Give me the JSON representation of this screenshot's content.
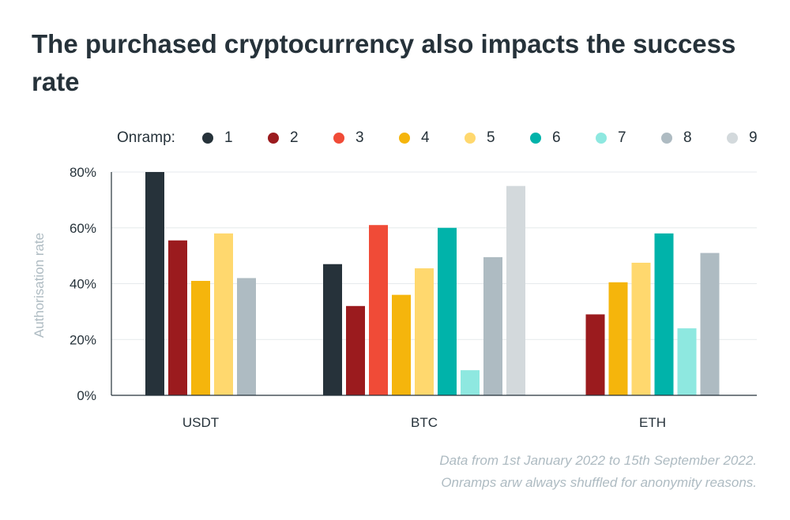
{
  "title": "The purchased cryptocurrency also impacts the success rate",
  "legend": {
    "label": "Onramp:",
    "items": [
      {
        "label": "1",
        "color": "#26323a"
      },
      {
        "label": "2",
        "color": "#9b1b1e"
      },
      {
        "label": "3",
        "color": "#f04b37"
      },
      {
        "label": "4",
        "color": "#f5b50c"
      },
      {
        "label": "5",
        "color": "#ffd86e"
      },
      {
        "label": "6",
        "color": "#00b3aa"
      },
      {
        "label": "7",
        "color": "#8ee8e0"
      },
      {
        "label": "8",
        "color": "#aebbc2"
      },
      {
        "label": "9",
        "color": "#d3d9dc"
      }
    ]
  },
  "footnote": {
    "line1": "Data from 1st January 2022 to 15th September 2022.",
    "line2": "Onramps arw always shuffled for anonymity reasons."
  },
  "chart_data": {
    "type": "bar",
    "categories": [
      "USDT",
      "BTC",
      "ETH"
    ],
    "ylabel": "Authorisation rate",
    "ylim": [
      0,
      80
    ],
    "yticks": [
      "0%",
      "20%",
      "40%",
      "60%",
      "80%"
    ],
    "grid": true,
    "legend_position": "top",
    "series": [
      {
        "name": "1",
        "values": [
          80,
          47,
          null
        ]
      },
      {
        "name": "2",
        "values": [
          55.5,
          32,
          29
        ]
      },
      {
        "name": "3",
        "values": [
          null,
          61,
          null
        ]
      },
      {
        "name": "4",
        "values": [
          41,
          36,
          40.5
        ]
      },
      {
        "name": "5",
        "values": [
          58,
          45.5,
          47.5
        ]
      },
      {
        "name": "6",
        "values": [
          null,
          60,
          58
        ]
      },
      {
        "name": "7",
        "values": [
          null,
          9,
          24
        ]
      },
      {
        "name": "8",
        "values": [
          42,
          49.5,
          51
        ]
      },
      {
        "name": "9",
        "values": [
          null,
          75,
          null
        ]
      }
    ]
  }
}
